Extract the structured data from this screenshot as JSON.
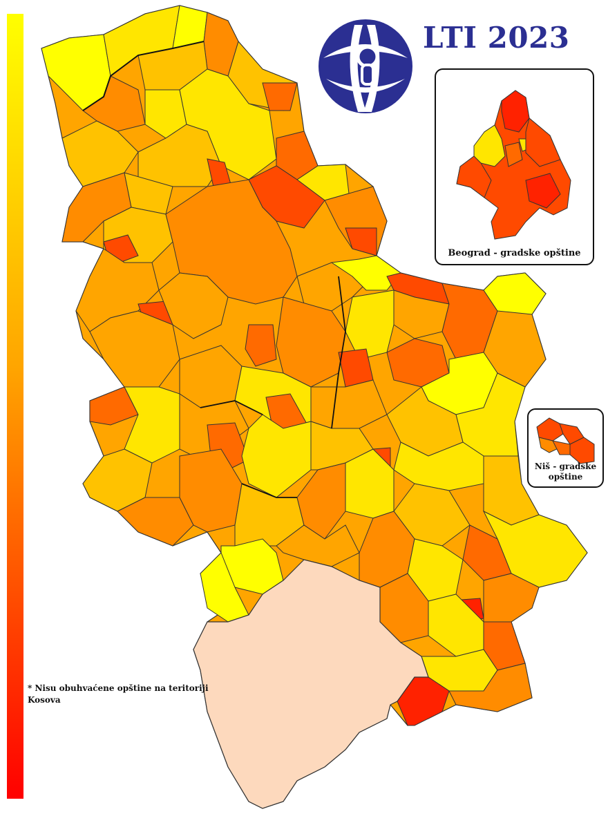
{
  "title": "LTI 2023",
  "logo": {
    "name": "transparency-logo",
    "color": "#2b2f92"
  },
  "legend": {
    "color_high": "#ffff00",
    "color_low": "#ff0000",
    "direction": "top-to-bottom"
  },
  "insets": {
    "beograd": {
      "label": "Beograd - gradske opštine"
    },
    "nis": {
      "label_line1": "Niš - gradske",
      "label_line2": "opštine"
    }
  },
  "footnote": {
    "line1": "* Nisu obuhvaćene opštine na teritoriji",
    "line2": "Kosova"
  },
  "colors": {
    "yellow": "#ffff00",
    "light_yellow": "#ffe600",
    "gold": "#ffc200",
    "light_orange": "#ffa500",
    "orange": "#ff8c00",
    "dark_orange": "#ff6a00",
    "red_orange": "#ff4a00",
    "red": "#ff2200",
    "kosovo": "#fdd9bd"
  }
}
